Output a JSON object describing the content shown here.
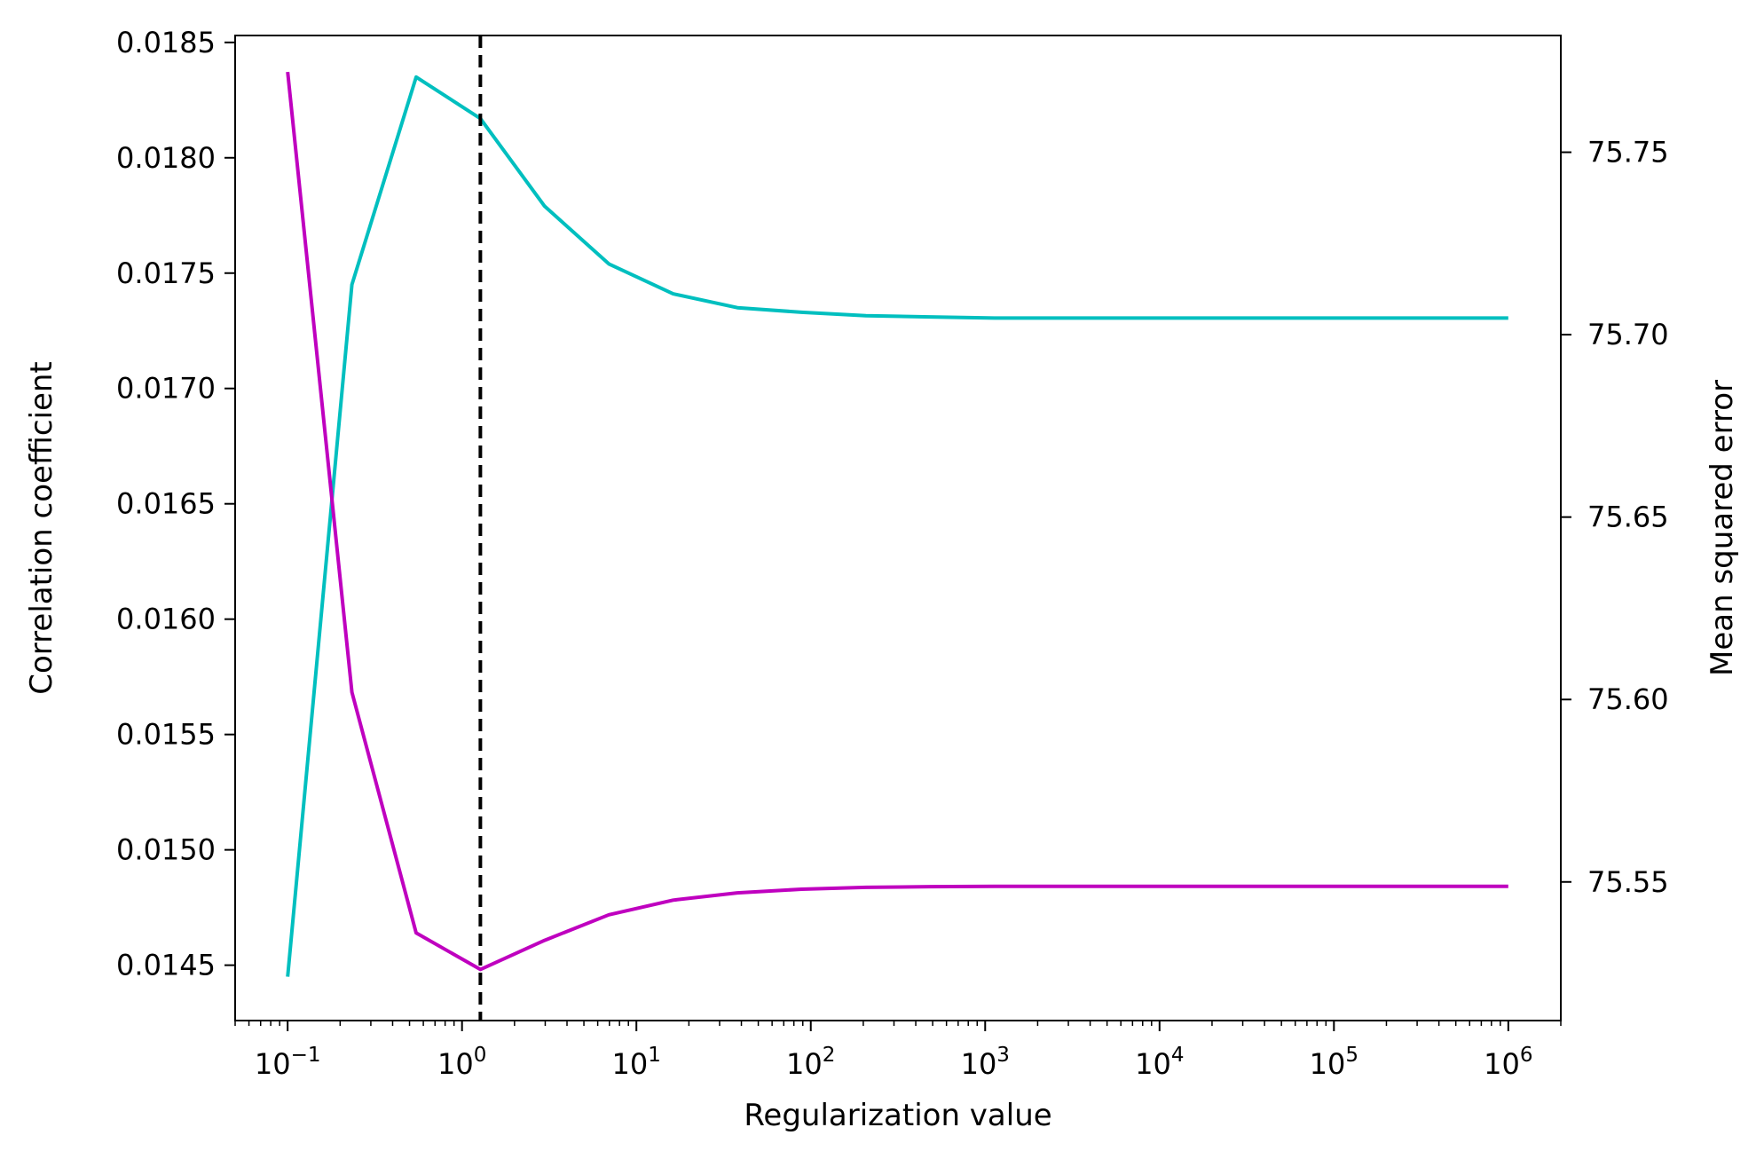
{
  "chart_data": {
    "type": "line",
    "xlabel": "Regularization value",
    "ylabel_left": "Correlation coefficient",
    "ylabel_right": "Mean squared error",
    "x_scale": "log",
    "xlim": [
      0.05,
      2000000
    ],
    "ylim_left": [
      0.01426,
      0.01853
    ],
    "ylim_right": [
      75.512,
      75.782
    ],
    "x_ticks": [
      {
        "value": 0.1,
        "base": "10",
        "exp": "−1"
      },
      {
        "value": 1,
        "base": "10",
        "exp": "0"
      },
      {
        "value": 10,
        "base": "10",
        "exp": "1"
      },
      {
        "value": 100,
        "base": "10",
        "exp": "2"
      },
      {
        "value": 1000,
        "base": "10",
        "exp": "3"
      },
      {
        "value": 10000,
        "base": "10",
        "exp": "4"
      },
      {
        "value": 100000,
        "base": "10",
        "exp": "5"
      },
      {
        "value": 1000000,
        "base": "10",
        "exp": "6"
      }
    ],
    "y_ticks_left": [
      "0.0145",
      "0.0150",
      "0.0155",
      "0.0160",
      "0.0165",
      "0.0170",
      "0.0175",
      "0.0180",
      "0.0185"
    ],
    "y_ticks_right": [
      "75.55",
      "75.60",
      "75.65",
      "75.70",
      "75.75"
    ],
    "grid": false,
    "x": [
      0.1,
      0.2336,
      0.5456,
      1.2743,
      2.9764,
      6.9519,
      16.237,
      37.927,
      88.587,
      206.91,
      483.29,
      1128.8,
      2636.7,
      6158.5,
      14384,
      33598,
      78476,
      183298,
      428133,
      1000000
    ],
    "series": [
      {
        "axis": "left",
        "color": "#00bfbf",
        "values": [
          0.01445,
          0.01745,
          0.01835,
          0.01817,
          0.01779,
          0.01754,
          0.01741,
          0.01735,
          0.01733,
          0.017315,
          0.01731,
          0.017305,
          0.017305,
          0.017305,
          0.017305,
          0.017305,
          0.017305,
          0.017305,
          0.017305,
          0.017305
        ]
      },
      {
        "axis": "right",
        "color": "#bf00bf",
        "values": [
          75.772,
          75.602,
          75.536,
          75.526,
          75.534,
          75.541,
          75.545,
          75.547,
          75.548,
          75.5485,
          75.5487,
          75.5488,
          75.5488,
          75.5488,
          75.5488,
          75.5488,
          75.5488,
          75.5488,
          75.5488,
          75.5488
        ]
      }
    ],
    "vline": {
      "x": 1.2743,
      "color": "#000000",
      "style": "dashed"
    }
  }
}
